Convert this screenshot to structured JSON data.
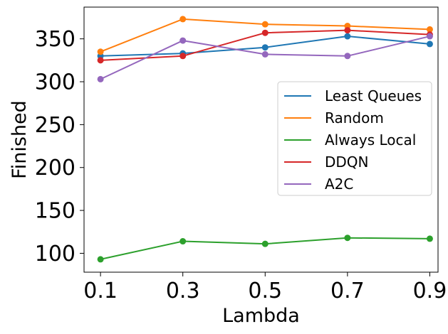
{
  "chart_data": {
    "type": "line",
    "xlabel": "Lambda",
    "ylabel": "Finished",
    "x": [
      0.1,
      0.3,
      0.5,
      0.7,
      0.9
    ],
    "x_tick_labels": [
      "0.1",
      "0.3",
      "0.5",
      "0.7",
      "0.9"
    ],
    "xlim": [
      0.06,
      0.92
    ],
    "ylim": [
      78,
      387
    ],
    "y_ticks": [
      100,
      150,
      200,
      250,
      300,
      350
    ],
    "y_tick_labels": [
      "100",
      "150",
      "200",
      "250",
      "300",
      "350"
    ],
    "grid": false,
    "legend_position": "center-right",
    "series": [
      {
        "name": "Least Queues",
        "color": "#1f77b4",
        "values": [
          330,
          333,
          340,
          353,
          344
        ]
      },
      {
        "name": "Random",
        "color": "#ff7f0e",
        "values": [
          335,
          373,
          367,
          365,
          361
        ]
      },
      {
        "name": "Always Local",
        "color": "#2ca02c",
        "values": [
          93,
          114,
          111,
          118,
          117
        ]
      },
      {
        "name": "DDQN",
        "color": "#d62728",
        "values": [
          325,
          330,
          357,
          360,
          355
        ]
      },
      {
        "name": "A2C",
        "color": "#9467bd",
        "values": [
          303,
          348,
          332,
          330,
          353
        ]
      }
    ]
  }
}
